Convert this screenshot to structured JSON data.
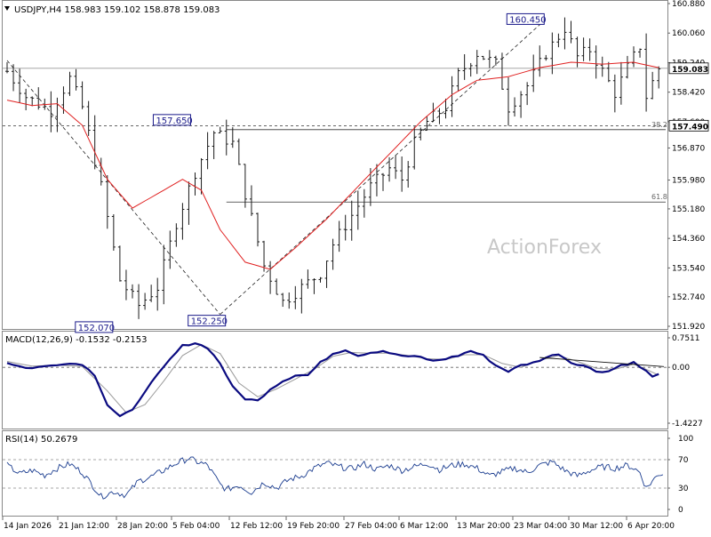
{
  "chart_data": [
    {
      "type": "line",
      "subtype": "ohlc-bars",
      "header": "USDJPY,H4 158.983 159.102 158.878 159.083",
      "symbol": "USDJPY",
      "timeframe": "H4",
      "last_bar": {
        "open": 158.983,
        "high": 159.102,
        "low": 158.878,
        "close": 159.083
      },
      "ylim": [
        151.92,
        160.88
      ],
      "y_ticks": [
        "160.880",
        "160.060",
        "159.240",
        "158.420",
        "157.600",
        "156.870",
        "155.980",
        "155.180",
        "154.360",
        "153.540",
        "152.740",
        "151.920"
      ],
      "current_price_label": "159.083",
      "current_price": 159.083,
      "level_label": "157.490",
      "level_price": 157.49,
      "x_ticks": [
        "14 Jan 2026",
        "21 Jan 12:00",
        "28 Jan 20:00",
        "5 Feb 04:00",
        "12 Feb 12:00",
        "19 Feb 20:00",
        "27 Feb 04:00",
        "6 Mar 12:00",
        "13 Mar 20:00",
        "23 Mar 04:00",
        "30 Mar 12:00",
        "6 Apr 20:00"
      ],
      "close_anchors": [
        [
          0,
          159.0
        ],
        [
          3,
          158.3
        ],
        [
          7,
          157.9
        ],
        [
          10,
          158.8
        ],
        [
          12,
          158.0
        ],
        [
          15,
          155.8
        ],
        [
          18,
          153.2
        ],
        [
          21,
          152.5
        ],
        [
          24,
          153.0
        ],
        [
          27,
          154.8
        ],
        [
          30,
          156.2
        ],
        [
          33,
          157.3
        ],
        [
          36,
          157.0
        ],
        [
          38,
          155.6
        ],
        [
          41,
          153.6
        ],
        [
          44,
          152.6
        ],
        [
          47,
          153.0
        ],
        [
          50,
          153.4
        ],
        [
          52,
          154.2
        ],
        [
          55,
          155.0
        ],
        [
          58,
          155.8
        ],
        [
          61,
          156.3
        ],
        [
          63,
          156.0
        ],
        [
          65,
          157.0
        ],
        [
          67,
          157.6
        ],
        [
          70,
          158.0
        ],
        [
          72,
          158.9
        ],
        [
          75,
          159.5
        ],
        [
          78,
          159.2
        ],
        [
          80,
          158.0
        ],
        [
          83,
          158.6
        ],
        [
          86,
          159.5
        ],
        [
          89,
          160.2
        ],
        [
          91,
          159.4
        ],
        [
          93,
          159.6
        ],
        [
          95,
          159.0
        ],
        [
          97,
          158.4
        ],
        [
          99,
          159.1
        ],
        [
          101,
          159.7
        ],
        [
          102,
          158.3
        ],
        [
          103,
          158.7
        ],
        [
          104,
          159.08
        ]
      ],
      "ema_anchors": [
        [
          0,
          158.2
        ],
        [
          4,
          158.05
        ],
        [
          8,
          158.1
        ],
        [
          12,
          157.5
        ],
        [
          16,
          156.0
        ],
        [
          20,
          155.2
        ],
        [
          24,
          155.6
        ],
        [
          28,
          156.0
        ],
        [
          31,
          155.7
        ],
        [
          34,
          154.6
        ],
        [
          38,
          153.7
        ],
        [
          42,
          153.5
        ],
        [
          46,
          154.1
        ],
        [
          51,
          154.9
        ],
        [
          56,
          155.8
        ],
        [
          61,
          156.7
        ],
        [
          66,
          157.6
        ],
        [
          71,
          158.35
        ],
        [
          75,
          158.75
        ],
        [
          80,
          158.85
        ],
        [
          85,
          159.1
        ],
        [
          90,
          159.25
        ],
        [
          95,
          159.2
        ],
        [
          100,
          159.25
        ],
        [
          104,
          159.1
        ]
      ],
      "annotations": [
        {
          "text": "160.450",
          "bar": 86,
          "price": 160.45
        },
        {
          "text": "157.650",
          "bar": 29,
          "price": 157.65
        },
        {
          "text": "152.070",
          "bar": 16,
          "price": 152.07
        },
        {
          "text": "152.250",
          "bar": 34,
          "price": 152.25
        }
      ],
      "fib_levels": [
        {
          "label": "38.2",
          "price": 157.38
        },
        {
          "label": "61.8",
          "price": 155.37
        }
      ],
      "watermark": "ActionForex",
      "colors": {
        "bars": "#1a1a1a",
        "ema": "#e02020",
        "label_border": "#1a1a8a"
      }
    },
    {
      "type": "line",
      "header": "MACD(12,26,9) -0.1532 -0.2153",
      "macd": -0.1532,
      "signal": -0.2153,
      "ylim": [
        -1.4227,
        0.7511
      ],
      "y_ticks": [
        "0.7511",
        "0.00",
        "-1.4227"
      ],
      "macd_anchors": [
        [
          0,
          0.12
        ],
        [
          3,
          -0.02
        ],
        [
          6,
          0.02
        ],
        [
          9,
          0.1
        ],
        [
          12,
          0.08
        ],
        [
          14,
          -0.2
        ],
        [
          16,
          -0.95
        ],
        [
          18,
          -1.25
        ],
        [
          20,
          -1.1
        ],
        [
          22,
          -0.6
        ],
        [
          24,
          -0.2
        ],
        [
          26,
          0.2
        ],
        [
          28,
          0.55
        ],
        [
          30,
          0.62
        ],
        [
          32,
          0.5
        ],
        [
          34,
          0.1
        ],
        [
          36,
          -0.5
        ],
        [
          38,
          -0.8
        ],
        [
          40,
          -0.85
        ],
        [
          42,
          -0.55
        ],
        [
          44,
          -0.35
        ],
        [
          46,
          -0.2
        ],
        [
          48,
          -0.2
        ],
        [
          50,
          0.12
        ],
        [
          52,
          0.35
        ],
        [
          54,
          0.45
        ],
        [
          56,
          0.3
        ],
        [
          58,
          0.38
        ],
        [
          60,
          0.42
        ],
        [
          62,
          0.32
        ],
        [
          64,
          0.28
        ],
        [
          66,
          0.26
        ],
        [
          68,
          0.16
        ],
        [
          70,
          0.22
        ],
        [
          72,
          0.3
        ],
        [
          74,
          0.42
        ],
        [
          76,
          0.3
        ],
        [
          78,
          0.05
        ],
        [
          80,
          -0.1
        ],
        [
          82,
          0.05
        ],
        [
          84,
          0.12
        ],
        [
          86,
          0.25
        ],
        [
          88,
          0.35
        ],
        [
          90,
          0.12
        ],
        [
          92,
          0.05
        ],
        [
          94,
          -0.1
        ],
        [
          96,
          -0.1
        ],
        [
          98,
          0.06
        ],
        [
          100,
          0.12
        ],
        [
          102,
          -0.1
        ],
        [
          103,
          -0.25
        ],
        [
          104,
          -0.15
        ]
      ],
      "signal_anchors": [
        [
          0,
          0.15
        ],
        [
          4,
          0.03
        ],
        [
          8,
          0.06
        ],
        [
          12,
          0.02
        ],
        [
          16,
          -0.6
        ],
        [
          19,
          -1.15
        ],
        [
          22,
          -0.95
        ],
        [
          25,
          -0.35
        ],
        [
          28,
          0.3
        ],
        [
          31,
          0.58
        ],
        [
          34,
          0.35
        ],
        [
          37,
          -0.4
        ],
        [
          40,
          -0.75
        ],
        [
          43,
          -0.55
        ],
        [
          46,
          -0.3
        ],
        [
          49,
          -0.05
        ],
        [
          52,
          0.28
        ],
        [
          55,
          0.38
        ],
        [
          58,
          0.36
        ],
        [
          61,
          0.36
        ],
        [
          64,
          0.3
        ],
        [
          67,
          0.22
        ],
        [
          70,
          0.2
        ],
        [
          73,
          0.32
        ],
        [
          76,
          0.32
        ],
        [
          79,
          0.1
        ],
        [
          82,
          0.0
        ],
        [
          85,
          0.18
        ],
        [
          88,
          0.3
        ],
        [
          91,
          0.15
        ],
        [
          94,
          -0.02
        ],
        [
          97,
          -0.05
        ],
        [
          100,
          0.08
        ],
        [
          102,
          -0.05
        ],
        [
          104,
          -0.2
        ]
      ],
      "colors": {
        "macd": "#0a0a80",
        "signal": "#999999"
      }
    },
    {
      "type": "line",
      "header": "RSI(14) 50.2679",
      "rsi": 50.2679,
      "ylim": [
        0,
        100
      ],
      "y_ticks": [
        "100",
        "70",
        "30",
        "0"
      ],
      "rsi_anchors": [
        [
          0,
          62
        ],
        [
          2,
          50
        ],
        [
          4,
          55
        ],
        [
          6,
          48
        ],
        [
          8,
          58
        ],
        [
          10,
          64
        ],
        [
          12,
          52
        ],
        [
          14,
          30
        ],
        [
          15,
          18
        ],
        [
          17,
          25
        ],
        [
          19,
          20
        ],
        [
          21,
          40
        ],
        [
          23,
          46
        ],
        [
          25,
          55
        ],
        [
          27,
          65
        ],
        [
          29,
          72
        ],
        [
          30,
          68
        ],
        [
          32,
          62
        ],
        [
          34,
          35
        ],
        [
          35,
          28
        ],
        [
          37,
          34
        ],
        [
          39,
          24
        ],
        [
          41,
          38
        ],
        [
          43,
          30
        ],
        [
          45,
          42
        ],
        [
          47,
          47
        ],
        [
          49,
          58
        ],
        [
          51,
          65
        ],
        [
          53,
          60
        ],
        [
          55,
          57
        ],
        [
          57,
          64
        ],
        [
          59,
          56
        ],
        [
          61,
          62
        ],
        [
          63,
          55
        ],
        [
          65,
          60
        ],
        [
          67,
          65
        ],
        [
          69,
          56
        ],
        [
          71,
          62
        ],
        [
          73,
          64
        ],
        [
          75,
          58
        ],
        [
          77,
          47
        ],
        [
          79,
          53
        ],
        [
          81,
          58
        ],
        [
          83,
          52
        ],
        [
          85,
          62
        ],
        [
          87,
          67
        ],
        [
          89,
          55
        ],
        [
          91,
          47
        ],
        [
          93,
          55
        ],
        [
          95,
          60
        ],
        [
          97,
          58
        ],
        [
          99,
          62
        ],
        [
          100,
          58
        ],
        [
          101,
          52
        ],
        [
          102,
          30
        ],
        [
          103,
          40
        ],
        [
          104,
          50
        ]
      ],
      "colors": {
        "rsi": "#1a3c8f"
      }
    }
  ]
}
